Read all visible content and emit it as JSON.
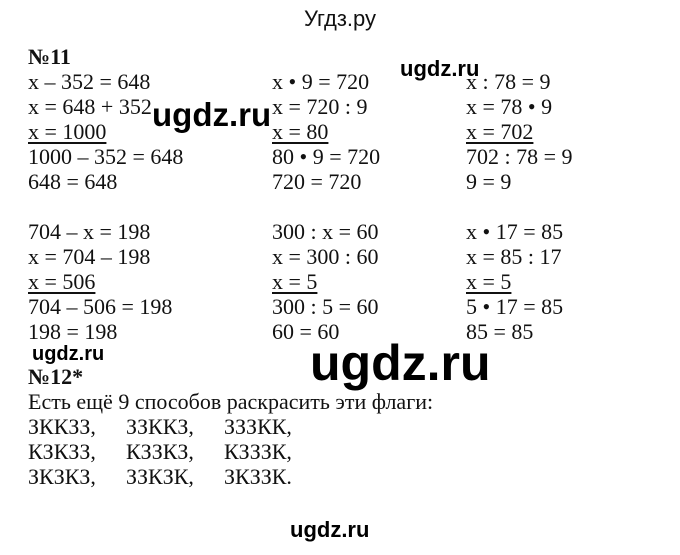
{
  "header": {
    "title": "Угдз.ру"
  },
  "watermarks": [
    "ugdz.ru",
    "ugdz.ru",
    "ugdz.ru",
    "ugdz.ru",
    "ugdz.ru"
  ],
  "task11": {
    "label": "№11",
    "block1": [
      [
        "x – 352 = 648",
        "x = 648 + 352",
        "x = 1000",
        "1000 – 352 = 648",
        "648 = 648"
      ],
      [
        "x • 9 = 720",
        "x = 720 : 9",
        "x = 80",
        "80 • 9 = 720",
        "720 = 720"
      ],
      [
        "x : 78 = 9",
        "x = 78 • 9",
        "x = 702",
        "702 : 78 = 9",
        "9 = 9"
      ]
    ],
    "block2": [
      [
        "704 – x = 198",
        "x = 704 – 198",
        "x = 506",
        "704 – 506 = 198",
        "198 = 198"
      ],
      [
        "300 : x = 60",
        "x = 300 : 60",
        "x = 5",
        "300 : 5 = 60",
        "60 = 60"
      ],
      [
        "x • 17 = 85",
        "x = 85 : 17",
        "x = 5",
        "5 • 17 = 85",
        "85 = 85"
      ]
    ]
  },
  "task12": {
    "label": "№12*",
    "text": "Есть ещё 9 способов раскрасить эти флаги:",
    "rows": [
      [
        "ЗККЗЗ,",
        "ЗЗККЗ,",
        "ЗЗЗКК,"
      ],
      [
        "КЗКЗЗ,",
        "КЗЗКЗ,",
        "КЗЗЗК,"
      ],
      [
        "ЗКЗКЗ,",
        "ЗЗКЗК,",
        "ЗКЗЗК."
      ]
    ]
  }
}
